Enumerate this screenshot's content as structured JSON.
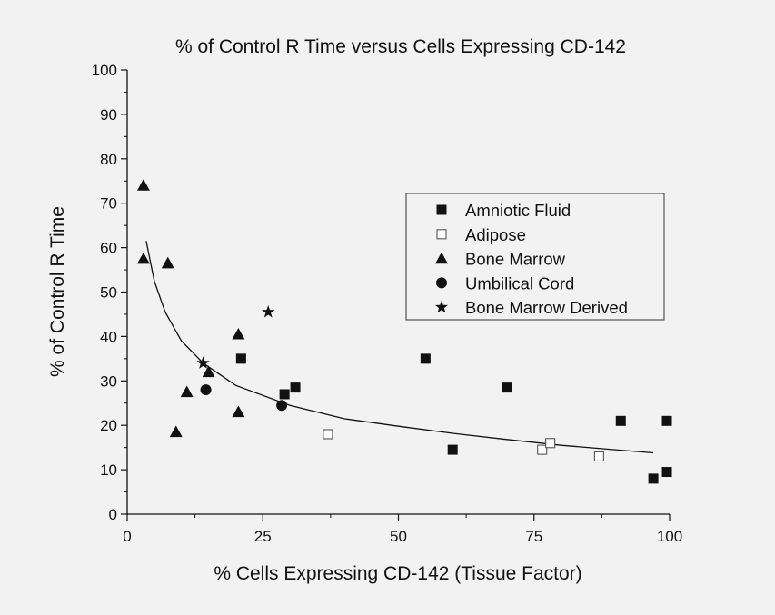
{
  "chart_data": {
    "type": "scatter",
    "title": "% of Control R Time versus Cells Expressing CD-142",
    "xlabel": "% Cells Expressing CD-142 (Tissue Factor)",
    "ylabel": "% of Control R Time",
    "xlim": [
      0,
      100
    ],
    "ylim": [
      0,
      100
    ],
    "x_ticks": [
      0,
      25,
      50,
      75,
      100
    ],
    "y_ticks": [
      0,
      10,
      20,
      30,
      40,
      50,
      60,
      70,
      80,
      90,
      100
    ],
    "grid": false,
    "legend_position": "right",
    "series": [
      {
        "name": "Amniotic Fluid",
        "marker": "filled-square",
        "points": [
          [
            21,
            35
          ],
          [
            29,
            27
          ],
          [
            31,
            28.5
          ],
          [
            55,
            35
          ],
          [
            60,
            14.5
          ],
          [
            70,
            28.5
          ],
          [
            91,
            21
          ],
          [
            97,
            8
          ],
          [
            99.5,
            21
          ],
          [
            99.5,
            9.5
          ]
        ]
      },
      {
        "name": "Adipose",
        "marker": "open-square",
        "points": [
          [
            37,
            18
          ],
          [
            76.5,
            14.5
          ],
          [
            78,
            16
          ],
          [
            87,
            13
          ]
        ]
      },
      {
        "name": "Bone Marrow",
        "marker": "filled-triangle",
        "points": [
          [
            3,
            74
          ],
          [
            3,
            57.5
          ],
          [
            7.5,
            56.5
          ],
          [
            9,
            18.5
          ],
          [
            11,
            27.5
          ],
          [
            15,
            32
          ],
          [
            20.5,
            40.5
          ],
          [
            20.5,
            23
          ]
        ]
      },
      {
        "name": "Umbilical Cord",
        "marker": "filled-circle",
        "points": [
          [
            14.5,
            28
          ],
          [
            28.5,
            24.5
          ]
        ]
      },
      {
        "name": "Bone Marrow Derived",
        "marker": "filled-star",
        "points": [
          [
            14,
            34
          ],
          [
            26,
            45.5
          ]
        ]
      }
    ],
    "trendline": {
      "type": "power",
      "points": [
        [
          3.5,
          61.5
        ],
        [
          5,
          52.5
        ],
        [
          7,
          45.5
        ],
        [
          10,
          39
        ],
        [
          14,
          34
        ],
        [
          20,
          29
        ],
        [
          30,
          24.5
        ],
        [
          40,
          21.5
        ],
        [
          50,
          19.8
        ],
        [
          60,
          18.2
        ],
        [
          70,
          16.8
        ],
        [
          80,
          15.5
        ],
        [
          90,
          14.5
        ],
        [
          97,
          13.8
        ]
      ]
    }
  }
}
